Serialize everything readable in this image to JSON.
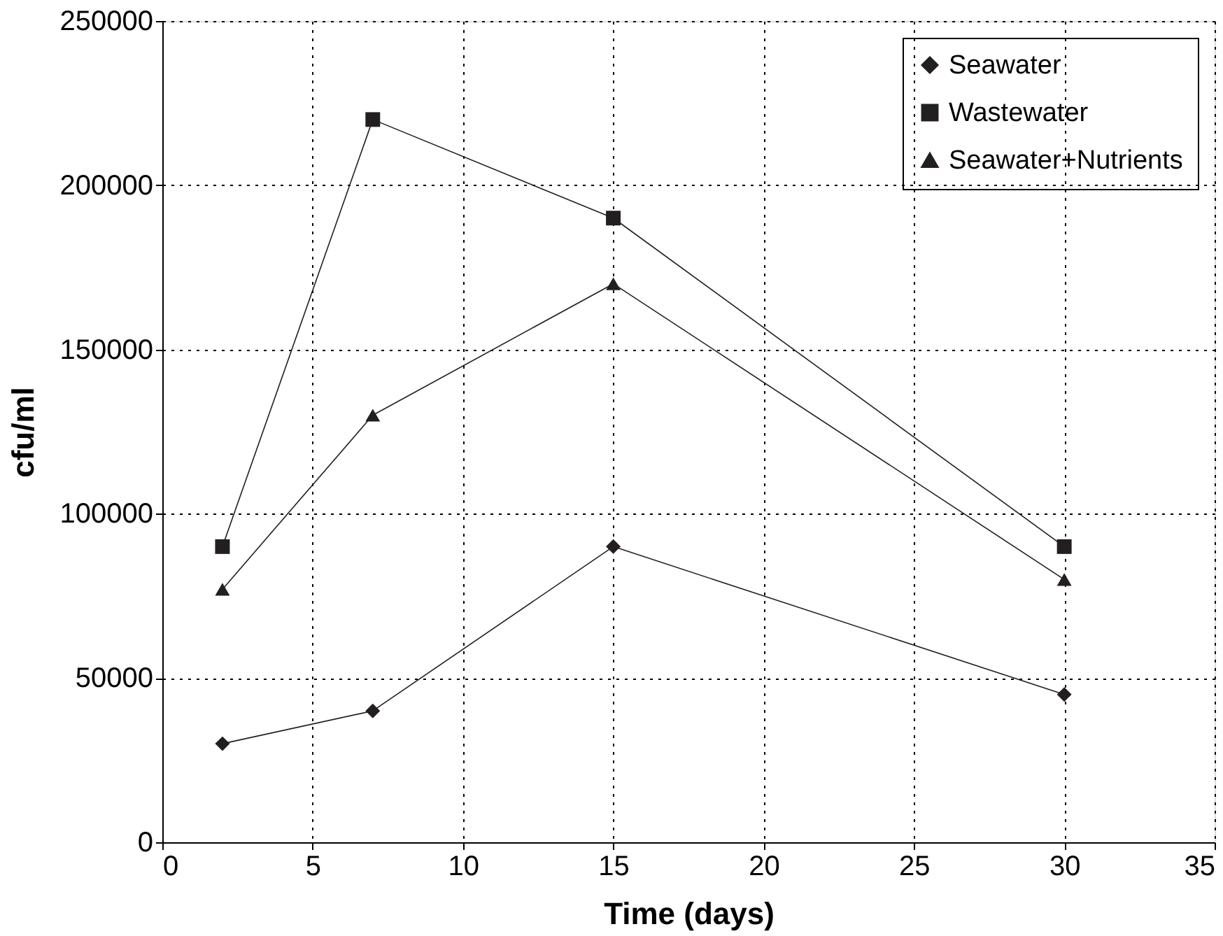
{
  "chart_data": {
    "type": "line",
    "xlabel": "Time (days)",
    "ylabel": "cfu/ml",
    "xlim": [
      0,
      35
    ],
    "xticks": [
      0,
      5,
      10,
      15,
      20,
      25,
      30,
      35
    ],
    "ylim": [
      0,
      250000
    ],
    "yticks": [
      0,
      50000,
      100000,
      150000,
      200000,
      250000
    ],
    "grid": true,
    "legend": "top right",
    "line_style": "solid",
    "x": [
      2,
      7,
      15,
      30
    ],
    "series": [
      {
        "name": "Seawater",
        "color": "#231f20",
        "marker": "diamond",
        "values": [
          30000,
          40000,
          90000,
          45000
        ]
      },
      {
        "name": "Wastewater",
        "color": "#231f20",
        "marker": "square",
        "values": [
          90000,
          220000,
          190000,
          90000
        ]
      },
      {
        "name": "Seawater+Nutrients",
        "color": "#231f20",
        "marker": "triangle",
        "values": [
          77000,
          130000,
          170000,
          80000
        ]
      }
    ]
  }
}
